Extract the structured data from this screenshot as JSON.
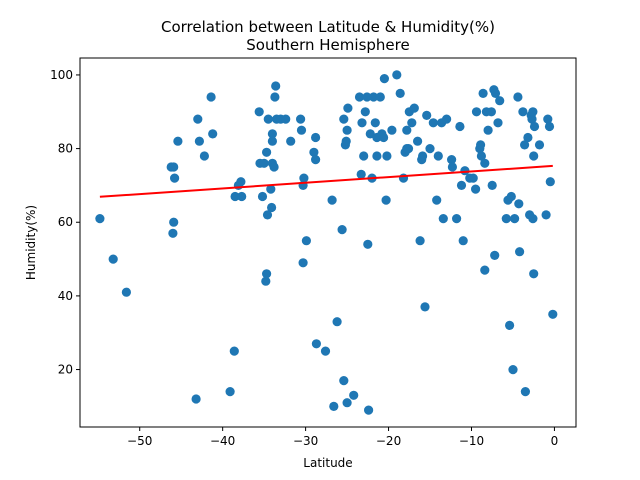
{
  "chart_data": {
    "type": "scatter",
    "title": "Correlation between Latitude & Humidity(%)",
    "subtitle": "Southern Hemisphere",
    "xlabel": "Latitude",
    "ylabel": "Humidity(%)",
    "xlim": [
      -57.2,
      2.6
    ],
    "ylim": [
      4.4,
      104.6
    ],
    "xticks": [
      -50,
      -40,
      -30,
      -20,
      -10,
      0
    ],
    "yticks": [
      20,
      40,
      60,
      80,
      100
    ],
    "grid": false,
    "marker_color": "#1f77b4",
    "line_color": "#ff0000",
    "regression": {
      "x": [
        -54.8,
        -0.2
      ],
      "y": [
        66.9,
        75.3
      ]
    },
    "points": [
      [
        -54.8,
        61
      ],
      [
        -53.2,
        50
      ],
      [
        -51.6,
        41
      ],
      [
        -46.2,
        75
      ],
      [
        -46.0,
        57
      ],
      [
        -45.9,
        60
      ],
      [
        -45.8,
        72
      ],
      [
        -45.4,
        82
      ],
      [
        -45.9,
        75
      ],
      [
        -43.2,
        12
      ],
      [
        -43.0,
        88
      ],
      [
        -42.8,
        82
      ],
      [
        -42.2,
        78
      ],
      [
        -41.4,
        94
      ],
      [
        -41.2,
        84
      ],
      [
        -39.1,
        14
      ],
      [
        -38.6,
        25
      ],
      [
        -38.5,
        67
      ],
      [
        -38.1,
        70
      ],
      [
        -37.8,
        71
      ],
      [
        -37.7,
        67
      ],
      [
        -35.6,
        90
      ],
      [
        -35.5,
        76
      ],
      [
        -35.2,
        67
      ],
      [
        -35.0,
        76
      ],
      [
        -34.8,
        44
      ],
      [
        -34.7,
        46
      ],
      [
        -34.6,
        62
      ],
      [
        -34.7,
        79
      ],
      [
        -34.5,
        88
      ],
      [
        -34.2,
        69
      ],
      [
        -34.1,
        64
      ],
      [
        -34.0,
        76
      ],
      [
        -34.0,
        84
      ],
      [
        -34.0,
        82
      ],
      [
        -33.8,
        75
      ],
      [
        -33.7,
        94
      ],
      [
        -33.6,
        97
      ],
      [
        -33.5,
        88
      ],
      [
        -33.0,
        88
      ],
      [
        -32.4,
        88
      ],
      [
        -31.8,
        82
      ],
      [
        -30.6,
        88
      ],
      [
        -30.5,
        85
      ],
      [
        -30.3,
        70
      ],
      [
        -30.2,
        72
      ],
      [
        -30.3,
        49
      ],
      [
        -29.9,
        55
      ],
      [
        -29.0,
        79
      ],
      [
        -28.8,
        77
      ],
      [
        -28.8,
        83
      ],
      [
        -28.7,
        27
      ],
      [
        -27.6,
        25
      ],
      [
        -26.8,
        66
      ],
      [
        -26.6,
        10
      ],
      [
        -26.2,
        33
      ],
      [
        -25.6,
        58
      ],
      [
        -25.4,
        17
      ],
      [
        -25.4,
        88
      ],
      [
        -25.2,
        81
      ],
      [
        -25.1,
        82
      ],
      [
        -25.0,
        85
      ],
      [
        -24.9,
        91
      ],
      [
        -25.0,
        11
      ],
      [
        -24.2,
        13
      ],
      [
        -23.5,
        94
      ],
      [
        -23.3,
        73
      ],
      [
        -23.2,
        87
      ],
      [
        -23.0,
        78
      ],
      [
        -22.8,
        90
      ],
      [
        -22.6,
        94
      ],
      [
        -22.5,
        54
      ],
      [
        -22.4,
        9
      ],
      [
        -22.2,
        84
      ],
      [
        -22.0,
        72
      ],
      [
        -21.8,
        94
      ],
      [
        -21.6,
        87
      ],
      [
        -21.4,
        83
      ],
      [
        -21.4,
        78
      ],
      [
        -21.0,
        94
      ],
      [
        -20.8,
        84
      ],
      [
        -20.6,
        83
      ],
      [
        -20.5,
        99
      ],
      [
        -20.3,
        66
      ],
      [
        -20.2,
        78
      ],
      [
        -19.6,
        85
      ],
      [
        -19.0,
        100
      ],
      [
        -18.6,
        95
      ],
      [
        -18.2,
        72
      ],
      [
        -18.0,
        79
      ],
      [
        -17.8,
        80
      ],
      [
        -17.6,
        80
      ],
      [
        -17.8,
        85
      ],
      [
        -17.5,
        90
      ],
      [
        -17.2,
        87
      ],
      [
        -16.9,
        91
      ],
      [
        -16.5,
        82
      ],
      [
        -16.2,
        55
      ],
      [
        -16.0,
        77
      ],
      [
        -15.9,
        78
      ],
      [
        -15.6,
        37
      ],
      [
        -15.4,
        89
      ],
      [
        -15.0,
        80
      ],
      [
        -14.6,
        87
      ],
      [
        -14.2,
        66
      ],
      [
        -14.0,
        78
      ],
      [
        -13.6,
        87
      ],
      [
        -13.4,
        61
      ],
      [
        -13.0,
        88
      ],
      [
        -12.4,
        77
      ],
      [
        -12.3,
        75
      ],
      [
        -11.8,
        61
      ],
      [
        -11.4,
        86
      ],
      [
        -11.2,
        70
      ],
      [
        -11.0,
        55
      ],
      [
        -10.8,
        74
      ],
      [
        -10.2,
        72
      ],
      [
        -9.8,
        72
      ],
      [
        -9.5,
        69
      ],
      [
        -9.4,
        90
      ],
      [
        -9.0,
        80
      ],
      [
        -8.9,
        81
      ],
      [
        -8.8,
        78
      ],
      [
        -8.6,
        95
      ],
      [
        -8.4,
        76
      ],
      [
        -8.4,
        47
      ],
      [
        -8.2,
        90
      ],
      [
        -8.0,
        85
      ],
      [
        -7.6,
        90
      ],
      [
        -7.5,
        70
      ],
      [
        -7.3,
        96
      ],
      [
        -7.2,
        51
      ],
      [
        -7.1,
        95
      ],
      [
        -6.8,
        87
      ],
      [
        -6.6,
        93
      ],
      [
        -5.8,
        61
      ],
      [
        -5.6,
        66
      ],
      [
        -5.4,
        32
      ],
      [
        -5.2,
        67
      ],
      [
        -5.0,
        20
      ],
      [
        -4.8,
        61
      ],
      [
        -4.4,
        94
      ],
      [
        -4.3,
        65
      ],
      [
        -4.2,
        52
      ],
      [
        -3.8,
        90
      ],
      [
        -3.6,
        81
      ],
      [
        -3.5,
        14
      ],
      [
        -3.2,
        83
      ],
      [
        -3.0,
        62
      ],
      [
        -2.8,
        89
      ],
      [
        -2.7,
        88
      ],
      [
        -2.6,
        61
      ],
      [
        -2.4,
        86
      ],
      [
        -2.6,
        90
      ],
      [
        -2.5,
        78
      ],
      [
        -2.5,
        46
      ],
      [
        -1.8,
        81
      ],
      [
        -1.0,
        62
      ],
      [
        -0.8,
        88
      ],
      [
        -0.6,
        86
      ],
      [
        -0.5,
        71
      ],
      [
        -0.2,
        35
      ]
    ]
  }
}
